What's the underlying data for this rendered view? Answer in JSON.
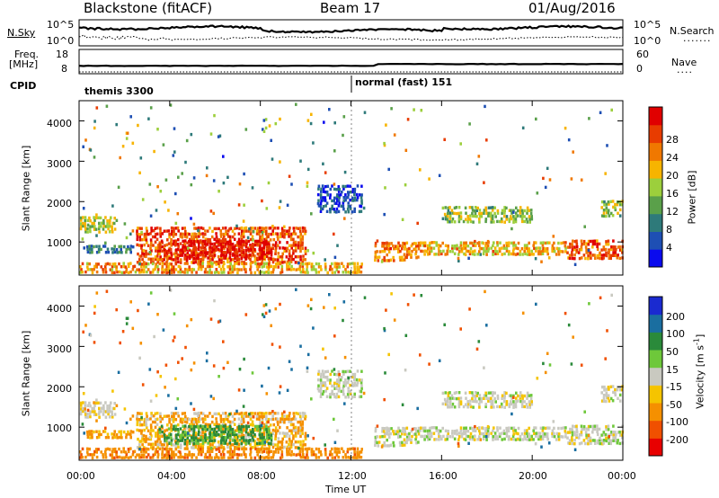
{
  "header": {
    "title_left": "Blackstone (fitACF)",
    "title_center": "Beam 17",
    "title_right": "01/Aug/2016"
  },
  "top_panels": {
    "nsky_label": "N.Sky",
    "nsky_ticks": [
      "10^5",
      "10^0"
    ],
    "nsearch_label": "N.Search",
    "nsearch_ticks": [
      "10^5",
      "10^0"
    ],
    "freq_label_line1": "Freq.",
    "freq_label_line2": "[MHz]",
    "freq_ticks": [
      "18",
      "8"
    ],
    "nave_label": "Nave",
    "nave_ticks": [
      "60",
      "0"
    ],
    "cpid_label": "CPID",
    "cpid_segments": [
      {
        "label": "themis 3300",
        "start_hour": 0
      },
      {
        "label": "normal (fast) 151",
        "start_hour": 12.0
      }
    ]
  },
  "x_axis": {
    "label": "Time UT",
    "ticks": [
      "00:00",
      "04:00",
      "08:00",
      "12:00",
      "16:00",
      "20:00",
      "00:00"
    ],
    "tick_hours": [
      0,
      4,
      8,
      12,
      16,
      20,
      24
    ]
  },
  "range_axis": {
    "label": "Slant Range [km]",
    "ticks": [
      "1000",
      "2000",
      "3000",
      "4000"
    ]
  },
  "power_colorbar": {
    "label": "Power [dB]",
    "ticks": [
      "4",
      "8",
      "12",
      "16",
      "20",
      "24",
      "28"
    ],
    "colors": [
      "#0a0aee",
      "#1e4fb4",
      "#2e7a7a",
      "#5aa04a",
      "#9ccf3c",
      "#f7b400",
      "#f07800",
      "#e83c00",
      "#e00000"
    ]
  },
  "velocity_colorbar": {
    "label_main": "Velocity [m s",
    "label_sup": "-1",
    "label_end": "]",
    "ticks": [
      "200",
      "100",
      "50",
      "15",
      "-15",
      "-50",
      "-100",
      "-200"
    ],
    "colors": [
      "#1a2ad0",
      "#1a6ea0",
      "#2a8a3a",
      "#6ec83a",
      "#c9c9c0",
      "#f5c400",
      "#f59000",
      "#f05000",
      "#e80000"
    ]
  },
  "chart_data": {
    "type": "heatmap",
    "title": "Blackstone (fitACF)",
    "subtitle": "Beam 17",
    "date": "01/Aug/2016",
    "x_range_hours": [
      0,
      24
    ],
    "range_limits_km": [
      180,
      4500
    ],
    "power_dB_range": [
      0,
      30
    ],
    "velocity_range": [
      -250,
      250
    ],
    "echo_regions": [
      {
        "start_h": 0.0,
        "end_h": 1.7,
        "r_min_km": 1200,
        "r_max_km": 1600,
        "power_dB": 15,
        "velocity": -10
      },
      {
        "start_h": 0.3,
        "end_h": 2.5,
        "r_min_km": 700,
        "r_max_km": 900,
        "power_dB": 8,
        "velocity": -40
      },
      {
        "start_h": 2.5,
        "end_h": 10.0,
        "r_min_km": 450,
        "r_max_km": 1350,
        "power_dB": 24,
        "velocity": -30
      },
      {
        "start_h": 3.5,
        "end_h": 8.5,
        "r_min_km": 550,
        "r_max_km": 1000,
        "power_dB": 28,
        "velocity": 40
      },
      {
        "start_h": 0.0,
        "end_h": 12.5,
        "r_min_km": 200,
        "r_max_km": 450,
        "power_dB": 20,
        "velocity": -60
      },
      {
        "start_h": 10.5,
        "end_h": 12.5,
        "r_min_km": 1700,
        "r_max_km": 2400,
        "power_dB": 5,
        "velocity": 0
      },
      {
        "start_h": 13.0,
        "end_h": 15.0,
        "r_min_km": 500,
        "r_max_km": 950,
        "power_dB": 22,
        "velocity": 0
      },
      {
        "start_h": 15.0,
        "end_h": 21.5,
        "r_min_km": 650,
        "r_max_km": 950,
        "power_dB": 19,
        "velocity": 0
      },
      {
        "start_h": 16.0,
        "end_h": 20.0,
        "r_min_km": 1450,
        "r_max_km": 1850,
        "power_dB": 14,
        "velocity": 0
      },
      {
        "start_h": 21.5,
        "end_h": 24.0,
        "r_min_km": 550,
        "r_max_km": 1000,
        "power_dB": 24,
        "velocity": 0
      },
      {
        "start_h": 23.0,
        "end_h": 24.0,
        "r_min_km": 1600,
        "r_max_km": 2000,
        "power_dB": 14,
        "velocity": 0
      }
    ]
  }
}
